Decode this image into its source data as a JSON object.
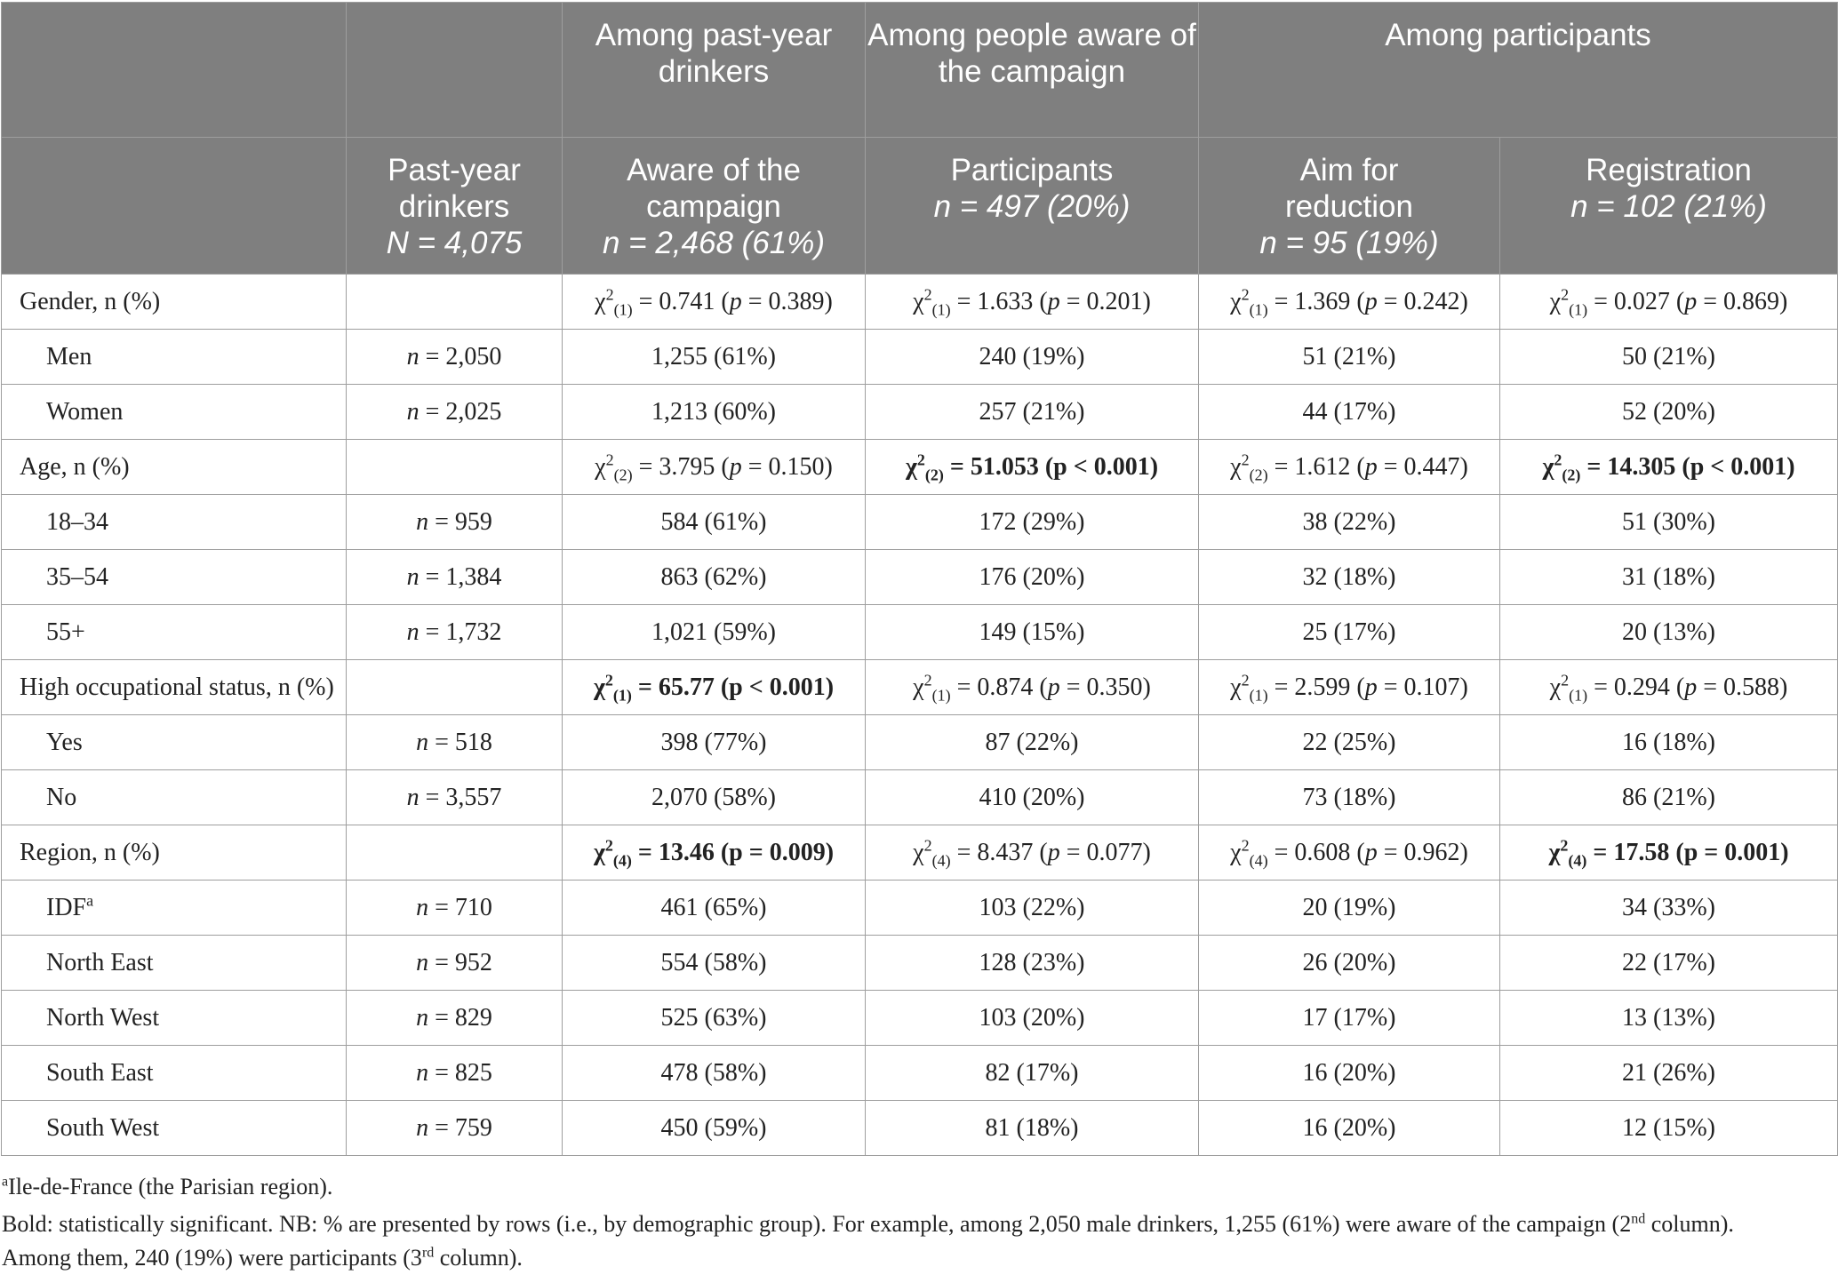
{
  "header": {
    "group1": "Among past-year drinkers",
    "group2": "Among people aware of the campaign",
    "group3": "Among participants",
    "col1_line1": "Past-year drinkers",
    "col1_n": "N = 4,075",
    "col2_line1": "Aware of the campaign",
    "col2_n": "n = 2,468 (61%)",
    "col3_line1": "Participants",
    "col3_n": "n = 497 (20%)",
    "col4_line1": "Aim for reduction",
    "col4_n": "n = 95 (19%)",
    "col5_line1": "Registration",
    "col5_n": "n = 102 (21%)"
  },
  "rows": [
    {
      "label": "Gender, n (%)",
      "header": true,
      "n": "",
      "c2": {
        "df": "(1)",
        "stat": " = 0.741 (",
        "p": "p",
        "rest": " = 0.389)"
      },
      "c3": {
        "df": "(1)",
        "stat": " = 1.633 (",
        "p": "p",
        "rest": " = 0.201)"
      },
      "c4": {
        "df": "(1)",
        "stat": " = 1.369 (",
        "p": "p",
        "rest": " = 0.242)"
      },
      "c5": {
        "df": "(1)",
        "stat": " = 0.027 (",
        "p": "p",
        "rest": " = 0.869)"
      }
    },
    {
      "label": "Men",
      "n": "n = 2,050",
      "c2": "1,255 (61%)",
      "c3": "240 (19%)",
      "c4": "51 (21%)",
      "c5": "50 (21%)"
    },
    {
      "label": "Women",
      "n": "n = 2,025",
      "c2": "1,213 (60%)",
      "c3": "257 (21%)",
      "c4": "44 (17%)",
      "c5": "52 (20%)"
    },
    {
      "label": "Age, n (%)",
      "header": true,
      "n": "",
      "c2": {
        "df": "(2)",
        "stat": " = 3.795 (",
        "p": "p",
        "rest": " = 0.150)"
      },
      "c3": {
        "df": "(2)",
        "stat": " = 51.053 (",
        "p": "p",
        "rest": " < 0.001)",
        "bold": true
      },
      "c4": {
        "df": "(2)",
        "stat": " = 1.612 (",
        "p": "p",
        "rest": " = 0.447)"
      },
      "c5": {
        "df": "(2)",
        "stat": " = 14.305 (",
        "p": "p",
        "rest": " < 0.001)",
        "bold": true
      }
    },
    {
      "label": "18–34",
      "n": "n = 959",
      "c2": "584 (61%)",
      "c3": "172 (29%)",
      "c4": "38 (22%)",
      "c5": "51 (30%)"
    },
    {
      "label": "35–54",
      "n": "n = 1,384",
      "c2": "863 (62%)",
      "c3": "176 (20%)",
      "c4": "32 (18%)",
      "c5": "31 (18%)"
    },
    {
      "label": "55+",
      "n": "n = 1,732",
      "c2": "1,021 (59%)",
      "c3": "149 (15%)",
      "c4": "25 (17%)",
      "c5": "20 (13%)"
    },
    {
      "label": "High occupational status, n (%)",
      "header": true,
      "n": "",
      "c2": {
        "df": "(1)",
        "stat": " = 65.77 (",
        "p": "p",
        "rest": " < 0.001)",
        "bold": true
      },
      "c3": {
        "df": "(1)",
        "stat": " = 0.874 (",
        "p": "p",
        "rest": " = 0.350)"
      },
      "c4": {
        "df": "(1)",
        "stat": " = 2.599 (",
        "p": "p",
        "rest": " = 0.107)"
      },
      "c5": {
        "df": "(1)",
        "stat": " = 0.294 (",
        "p": "p",
        "rest": " = 0.588)"
      }
    },
    {
      "label": "Yes",
      "n": "n = 518",
      "c2": "398 (77%)",
      "c3": "87 (22%)",
      "c4": "22 (25%)",
      "c5": "16 (18%)"
    },
    {
      "label": "No",
      "n": "n = 3,557",
      "c2": "2,070 (58%)",
      "c3": "410 (20%)",
      "c4": "73 (18%)",
      "c5": "86 (21%)"
    },
    {
      "label": "Region, n (%)",
      "header": true,
      "n": "",
      "c2": {
        "df": "(4)",
        "stat": " = 13.46 (",
        "p": "p",
        "rest": " = 0.009)",
        "bold": true
      },
      "c3": {
        "df": "(4)",
        "stat": " = 8.437 (",
        "p": "p",
        "rest": " = 0.077)"
      },
      "c4": {
        "df": "(4)",
        "stat": " = 0.608 (",
        "p": "p",
        "rest": " = 0.962)"
      },
      "c5": {
        "df": "(4)",
        "stat": " = 17.58 (",
        "p": "p",
        "rest": " = 0.001)",
        "bold": true
      }
    },
    {
      "label": "IDF",
      "label_sup": "a",
      "n": "n = 710",
      "c2": "461 (65%)",
      "c3": "103 (22%)",
      "c4": "20 (19%)",
      "c5": "34 (33%)"
    },
    {
      "label": "North East",
      "n": "n = 952",
      "c2": "554 (58%)",
      "c3": "128 (23%)",
      "c4": "26 (20%)",
      "c5": "22 (17%)"
    },
    {
      "label": "North West",
      "n": "n = 829",
      "c2": "525 (63%)",
      "c3": "103 (20%)",
      "c4": "17 (17%)",
      "c5": "13 (13%)"
    },
    {
      "label": "South East",
      "n": "n = 825",
      "c2": "478 (58%)",
      "c3": "82 (17%)",
      "c4": "16 (20%)",
      "c5": "21 (26%)"
    },
    {
      "label": "South West",
      "n": "n = 759",
      "c2": "450 (59%)",
      "c3": "81 (18%)",
      "c4": "16 (20%)",
      "c5": "12 (15%)"
    }
  ],
  "footnotes": {
    "fn1_sup": "a",
    "fn1_text": "Ile-de-France (the Parisian region).",
    "fn2_a": "Bold: statistically significant. NB: % are presented by rows (i.e., by demographic group). For example, among 2,050 male drinkers, 1,255 (61%) were aware of the campaign (2",
    "fn2_sup1": "nd",
    "fn2_b": " column).",
    "fn3_a": "Among them, 240 (19%) were participants (3",
    "fn3_sup": "rd",
    "fn3_b": " column)."
  }
}
